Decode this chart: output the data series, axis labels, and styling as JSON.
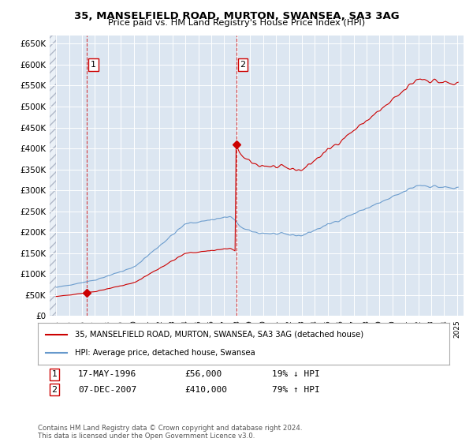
{
  "title1": "35, MANSELFIELD ROAD, MURTON, SWANSEA, SA3 3AG",
  "title2": "Price paid vs. HM Land Registry's House Price Index (HPI)",
  "red_label": "35, MANSELFIELD ROAD, MURTON, SWANSEA, SA3 3AG (detached house)",
  "blue_label": "HPI: Average price, detached house, Swansea",
  "purchase1_date": "17-MAY-1996",
  "purchase1_price": 56000,
  "purchase1_hpi_pct": "19% ↓ HPI",
  "purchase2_date": "07-DEC-2007",
  "purchase2_price": 410000,
  "purchase2_hpi_pct": "79% ↑ HPI",
  "purchase1_year": 1996.38,
  "purchase2_year": 2007.92,
  "xlim_left": 1993.5,
  "xlim_right": 2025.5,
  "ylim_bottom": 0,
  "ylim_top": 670000,
  "plot_bg": "#dce6f1",
  "red_color": "#cc0000",
  "blue_color": "#6699cc",
  "grid_color": "#ffffff",
  "footer_text": "Contains HM Land Registry data © Crown copyright and database right 2024.\nThis data is licensed under the Open Government Licence v3.0."
}
